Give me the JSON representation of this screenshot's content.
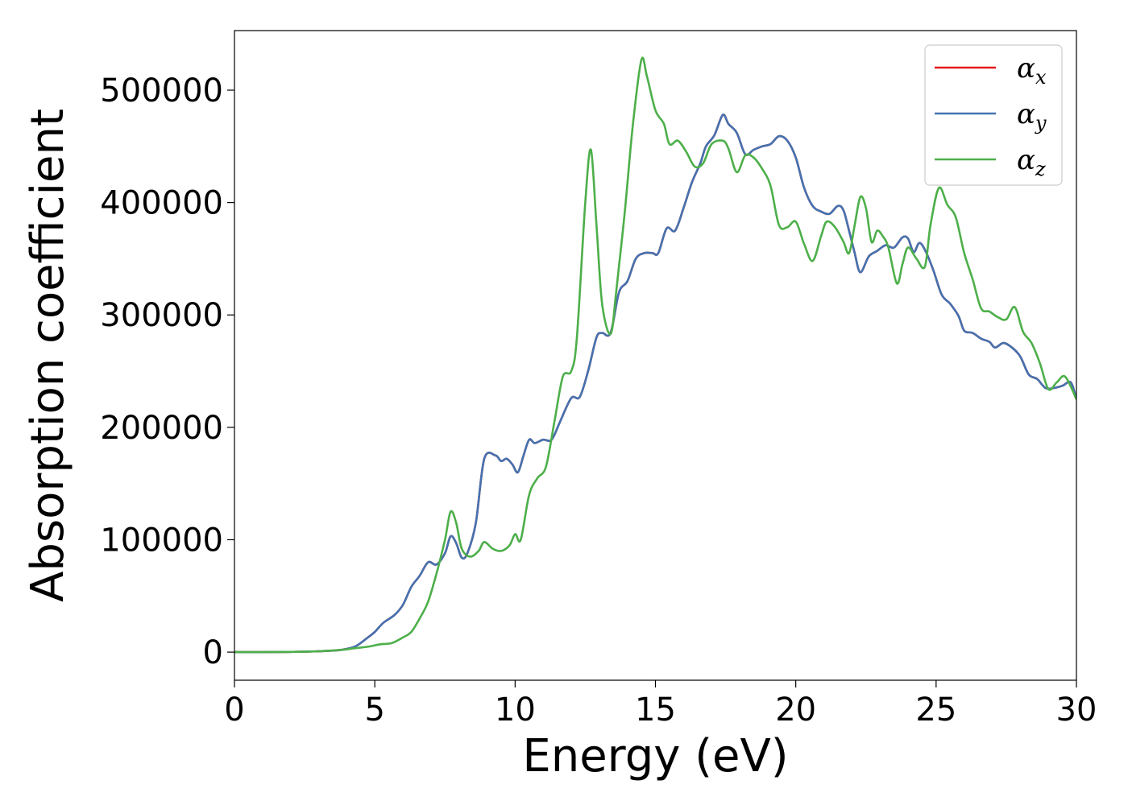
{
  "chart_data": {
    "type": "line",
    "title": "",
    "xlabel": "Energy (eV)",
    "ylabel": "Absorption coefficient",
    "xlim": [
      0,
      30
    ],
    "ylim": [
      -25000,
      553000
    ],
    "xticks": [
      0,
      5,
      10,
      15,
      20,
      25,
      30
    ],
    "yticks": [
      0,
      100000,
      200000,
      300000,
      400000,
      500000
    ],
    "grid": false,
    "legend_position": "top-right",
    "series": [
      {
        "name": "α",
        "subscript": "x",
        "color": "#e41a1c",
        "points": [
          [
            0,
            0
          ],
          [
            1,
            0
          ],
          [
            2,
            200
          ],
          [
            3,
            800
          ],
          [
            3.8,
            2000
          ],
          [
            4.3,
            5000
          ],
          [
            4.7,
            12000
          ],
          [
            5.0,
            18000
          ],
          [
            5.3,
            26000
          ],
          [
            5.7,
            33000
          ],
          [
            6.0,
            42000
          ],
          [
            6.3,
            58000
          ],
          [
            6.6,
            68000
          ],
          [
            6.9,
            80000
          ],
          [
            7.2,
            78000
          ],
          [
            7.5,
            88000
          ],
          [
            7.7,
            103000
          ],
          [
            7.9,
            97000
          ],
          [
            8.1,
            84000
          ],
          [
            8.3,
            88000
          ],
          [
            8.6,
            115000
          ],
          [
            8.9,
            172000
          ],
          [
            9.3,
            175000
          ],
          [
            9.5,
            170000
          ],
          [
            9.7,
            172000
          ],
          [
            9.9,
            167000
          ],
          [
            10.1,
            160000
          ],
          [
            10.3,
            175000
          ],
          [
            10.5,
            189000
          ],
          [
            10.7,
            186000
          ],
          [
            11.0,
            189000
          ],
          [
            11.3,
            189000
          ],
          [
            11.6,
            205000
          ],
          [
            12.0,
            226000
          ],
          [
            12.3,
            227000
          ],
          [
            12.6,
            250000
          ],
          [
            12.9,
            280000
          ],
          [
            13.1,
            284000
          ],
          [
            13.4,
            284000
          ],
          [
            13.7,
            320000
          ],
          [
            14.0,
            330000
          ],
          [
            14.3,
            350000
          ],
          [
            14.6,
            355000
          ],
          [
            14.9,
            355000
          ],
          [
            15.1,
            355000
          ],
          [
            15.4,
            377000
          ],
          [
            15.7,
            375000
          ],
          [
            16.0,
            395000
          ],
          [
            16.3,
            418000
          ],
          [
            16.6,
            435000
          ],
          [
            16.8,
            450000
          ],
          [
            17.1,
            460000
          ],
          [
            17.4,
            478000
          ],
          [
            17.6,
            470000
          ],
          [
            17.9,
            462000
          ],
          [
            18.2,
            443000
          ],
          [
            18.5,
            447000
          ],
          [
            18.8,
            450000
          ],
          [
            19.1,
            452000
          ],
          [
            19.4,
            459000
          ],
          [
            19.7,
            455000
          ],
          [
            20.0,
            440000
          ],
          [
            20.3,
            413000
          ],
          [
            20.6,
            397000
          ],
          [
            20.9,
            392000
          ],
          [
            21.2,
            390000
          ],
          [
            21.5,
            397000
          ],
          [
            21.7,
            393000
          ],
          [
            21.9,
            375000
          ],
          [
            22.1,
            355000
          ],
          [
            22.3,
            338000
          ],
          [
            22.6,
            352000
          ],
          [
            22.9,
            357000
          ],
          [
            23.2,
            362000
          ],
          [
            23.5,
            360000
          ],
          [
            23.8,
            369000
          ],
          [
            24.0,
            368000
          ],
          [
            24.2,
            356000
          ],
          [
            24.4,
            364000
          ],
          [
            24.6,
            358000
          ],
          [
            24.9,
            340000
          ],
          [
            25.2,
            318000
          ],
          [
            25.5,
            310000
          ],
          [
            25.8,
            299000
          ],
          [
            26.0,
            286000
          ],
          [
            26.3,
            284000
          ],
          [
            26.6,
            279000
          ],
          [
            26.9,
            276000
          ],
          [
            27.1,
            271000
          ],
          [
            27.4,
            275000
          ],
          [
            27.7,
            271000
          ],
          [
            28.0,
            263000
          ],
          [
            28.3,
            247000
          ],
          [
            28.6,
            243000
          ],
          [
            28.9,
            235000
          ],
          [
            29.2,
            235000
          ],
          [
            29.5,
            237000
          ],
          [
            29.8,
            240000
          ],
          [
            30.0,
            225000
          ]
        ]
      },
      {
        "name": "α",
        "subscript": "y",
        "color": "#4472b0",
        "points": [
          [
            0,
            0
          ],
          [
            1,
            0
          ],
          [
            2,
            200
          ],
          [
            3,
            800
          ],
          [
            3.8,
            2000
          ],
          [
            4.3,
            5000
          ],
          [
            4.7,
            12000
          ],
          [
            5.0,
            18000
          ],
          [
            5.3,
            26000
          ],
          [
            5.7,
            33000
          ],
          [
            6.0,
            42000
          ],
          [
            6.3,
            58000
          ],
          [
            6.6,
            68000
          ],
          [
            6.9,
            80000
          ],
          [
            7.2,
            78000
          ],
          [
            7.5,
            88000
          ],
          [
            7.7,
            103000
          ],
          [
            7.9,
            97000
          ],
          [
            8.1,
            84000
          ],
          [
            8.3,
            88000
          ],
          [
            8.6,
            115000
          ],
          [
            8.9,
            172000
          ],
          [
            9.3,
            175000
          ],
          [
            9.5,
            170000
          ],
          [
            9.7,
            172000
          ],
          [
            9.9,
            167000
          ],
          [
            10.1,
            160000
          ],
          [
            10.3,
            175000
          ],
          [
            10.5,
            189000
          ],
          [
            10.7,
            186000
          ],
          [
            11.0,
            189000
          ],
          [
            11.3,
            189000
          ],
          [
            11.6,
            205000
          ],
          [
            12.0,
            226000
          ],
          [
            12.3,
            227000
          ],
          [
            12.6,
            250000
          ],
          [
            12.9,
            280000
          ],
          [
            13.1,
            284000
          ],
          [
            13.4,
            284000
          ],
          [
            13.7,
            320000
          ],
          [
            14.0,
            330000
          ],
          [
            14.3,
            350000
          ],
          [
            14.6,
            355000
          ],
          [
            14.9,
            355000
          ],
          [
            15.1,
            355000
          ],
          [
            15.4,
            377000
          ],
          [
            15.7,
            375000
          ],
          [
            16.0,
            395000
          ],
          [
            16.3,
            418000
          ],
          [
            16.6,
            435000
          ],
          [
            16.8,
            450000
          ],
          [
            17.1,
            460000
          ],
          [
            17.4,
            478000
          ],
          [
            17.6,
            470000
          ],
          [
            17.9,
            462000
          ],
          [
            18.2,
            443000
          ],
          [
            18.5,
            447000
          ],
          [
            18.8,
            450000
          ],
          [
            19.1,
            452000
          ],
          [
            19.4,
            459000
          ],
          [
            19.7,
            455000
          ],
          [
            20.0,
            440000
          ],
          [
            20.3,
            413000
          ],
          [
            20.6,
            397000
          ],
          [
            20.9,
            392000
          ],
          [
            21.2,
            390000
          ],
          [
            21.5,
            397000
          ],
          [
            21.7,
            393000
          ],
          [
            21.9,
            375000
          ],
          [
            22.1,
            355000
          ],
          [
            22.3,
            338000
          ],
          [
            22.6,
            352000
          ],
          [
            22.9,
            357000
          ],
          [
            23.2,
            362000
          ],
          [
            23.5,
            360000
          ],
          [
            23.8,
            369000
          ],
          [
            24.0,
            368000
          ],
          [
            24.2,
            356000
          ],
          [
            24.4,
            364000
          ],
          [
            24.6,
            358000
          ],
          [
            24.9,
            340000
          ],
          [
            25.2,
            318000
          ],
          [
            25.5,
            310000
          ],
          [
            25.8,
            299000
          ],
          [
            26.0,
            286000
          ],
          [
            26.3,
            284000
          ],
          [
            26.6,
            279000
          ],
          [
            26.9,
            276000
          ],
          [
            27.1,
            271000
          ],
          [
            27.4,
            275000
          ],
          [
            27.7,
            271000
          ],
          [
            28.0,
            263000
          ],
          [
            28.3,
            247000
          ],
          [
            28.6,
            243000
          ],
          [
            28.9,
            235000
          ],
          [
            29.2,
            235000
          ],
          [
            29.5,
            237000
          ],
          [
            29.8,
            240000
          ],
          [
            30.0,
            225000
          ]
        ]
      },
      {
        "name": "α",
        "subscript": "z",
        "color": "#4daf4a",
        "points": [
          [
            0,
            0
          ],
          [
            1,
            0
          ],
          [
            2,
            200
          ],
          [
            3,
            800
          ],
          [
            3.8,
            2000
          ],
          [
            4.3,
            3500
          ],
          [
            4.8,
            5000
          ],
          [
            5.2,
            7000
          ],
          [
            5.6,
            8000
          ],
          [
            6.0,
            13000
          ],
          [
            6.3,
            18000
          ],
          [
            6.6,
            30000
          ],
          [
            6.9,
            45000
          ],
          [
            7.2,
            70000
          ],
          [
            7.5,
            100000
          ],
          [
            7.7,
            125000
          ],
          [
            7.9,
            115000
          ],
          [
            8.1,
            92000
          ],
          [
            8.4,
            85000
          ],
          [
            8.7,
            90000
          ],
          [
            8.9,
            98000
          ],
          [
            9.2,
            92000
          ],
          [
            9.5,
            90000
          ],
          [
            9.8,
            95000
          ],
          [
            10.0,
            105000
          ],
          [
            10.2,
            100000
          ],
          [
            10.5,
            140000
          ],
          [
            10.8,
            155000
          ],
          [
            11.1,
            165000
          ],
          [
            11.4,
            205000
          ],
          [
            11.7,
            245000
          ],
          [
            12.0,
            250000
          ],
          [
            12.2,
            280000
          ],
          [
            12.5,
            400000
          ],
          [
            12.7,
            447000
          ],
          [
            12.9,
            380000
          ],
          [
            13.1,
            310000
          ],
          [
            13.4,
            283000
          ],
          [
            13.6,
            320000
          ],
          [
            13.9,
            390000
          ],
          [
            14.2,
            470000
          ],
          [
            14.5,
            527000
          ],
          [
            14.7,
            512000
          ],
          [
            15.0,
            482000
          ],
          [
            15.3,
            470000
          ],
          [
            15.5,
            452000
          ],
          [
            15.8,
            455000
          ],
          [
            16.1,
            445000
          ],
          [
            16.4,
            432000
          ],
          [
            16.7,
            435000
          ],
          [
            17.0,
            452000
          ],
          [
            17.4,
            455000
          ],
          [
            17.6,
            448000
          ],
          [
            17.9,
            427000
          ],
          [
            18.2,
            442000
          ],
          [
            18.5,
            440000
          ],
          [
            18.8,
            430000
          ],
          [
            19.1,
            415000
          ],
          [
            19.4,
            380000
          ],
          [
            19.7,
            378000
          ],
          [
            20.0,
            383000
          ],
          [
            20.3,
            363000
          ],
          [
            20.6,
            348000
          ],
          [
            20.9,
            370000
          ],
          [
            21.1,
            383000
          ],
          [
            21.4,
            378000
          ],
          [
            21.7,
            365000
          ],
          [
            21.9,
            355000
          ],
          [
            22.1,
            380000
          ],
          [
            22.3,
            405000
          ],
          [
            22.5,
            395000
          ],
          [
            22.7,
            365000
          ],
          [
            22.9,
            375000
          ],
          [
            23.1,
            370000
          ],
          [
            23.3,
            360000
          ],
          [
            23.6,
            328000
          ],
          [
            23.8,
            345000
          ],
          [
            24.0,
            360000
          ],
          [
            24.3,
            350000
          ],
          [
            24.6,
            343000
          ],
          [
            24.8,
            380000
          ],
          [
            25.1,
            413000
          ],
          [
            25.4,
            398000
          ],
          [
            25.7,
            387000
          ],
          [
            26.0,
            355000
          ],
          [
            26.3,
            332000
          ],
          [
            26.6,
            306000
          ],
          [
            26.9,
            303000
          ],
          [
            27.2,
            298000
          ],
          [
            27.5,
            296000
          ],
          [
            27.8,
            307000
          ],
          [
            28.1,
            285000
          ],
          [
            28.4,
            275000
          ],
          [
            28.7,
            257000
          ],
          [
            29.0,
            234000
          ],
          [
            29.3,
            240000
          ],
          [
            29.6,
            245000
          ],
          [
            30.0,
            225000
          ]
        ]
      }
    ]
  }
}
